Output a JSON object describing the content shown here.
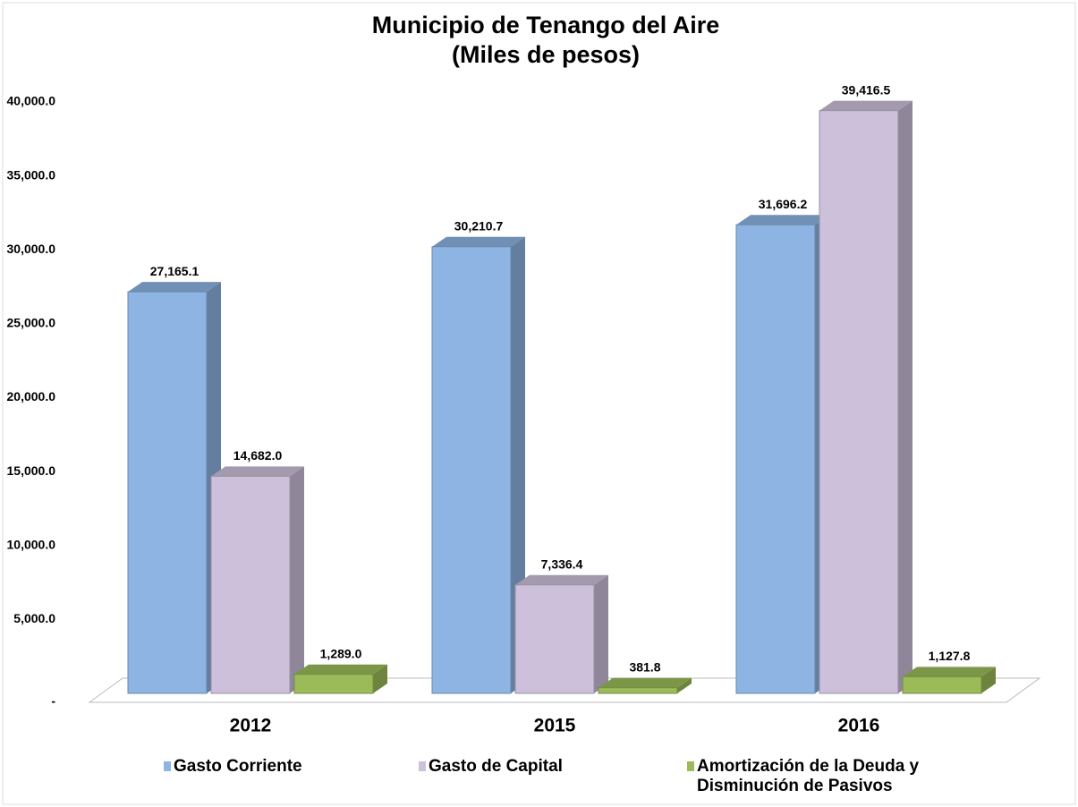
{
  "chart_data": {
    "type": "bar3d",
    "title": "Municipio de Tenango del Aire",
    "subtitle": "(Miles de pesos)",
    "categories": [
      "2012",
      "2015",
      "2016"
    ],
    "series": [
      {
        "name": "Gasto Corriente",
        "color": "#8db4e2",
        "values": [
          27165.1,
          30210.7,
          31696.2
        ],
        "value_labels": [
          "27,165.1",
          "30,210.7",
          "31,696.2"
        ]
      },
      {
        "name": "Gasto de Capital",
        "color": "#ccc0da",
        "values": [
          14682.0,
          7336.4,
          39416.5
        ],
        "value_labels": [
          "14,682.0",
          "7,336.4",
          "39,416.5"
        ]
      },
      {
        "name": "Amortización de la Deuda y Disminución de Pasivos",
        "color": "#9bbb59",
        "values": [
          1289.0,
          381.8,
          1127.8
        ],
        "value_labels": [
          "1,289.0",
          "381.8",
          "1,127.8"
        ]
      }
    ],
    "ylim": [
      0,
      40000
    ],
    "yticks": [
      {
        "value": 0,
        "label": "-"
      },
      {
        "value": 5000,
        "label": "5,000.0"
      },
      {
        "value": 10000,
        "label": "10,000.0"
      },
      {
        "value": 15000,
        "label": "15,000.0"
      },
      {
        "value": 20000,
        "label": "20,000.0"
      },
      {
        "value": 25000,
        "label": "25,000.0"
      },
      {
        "value": 30000,
        "label": "30,000.0"
      },
      {
        "value": 35000,
        "label": "35,000.0"
      },
      {
        "value": 40000,
        "label": "40,000.0"
      }
    ],
    "legend": "bottom"
  }
}
